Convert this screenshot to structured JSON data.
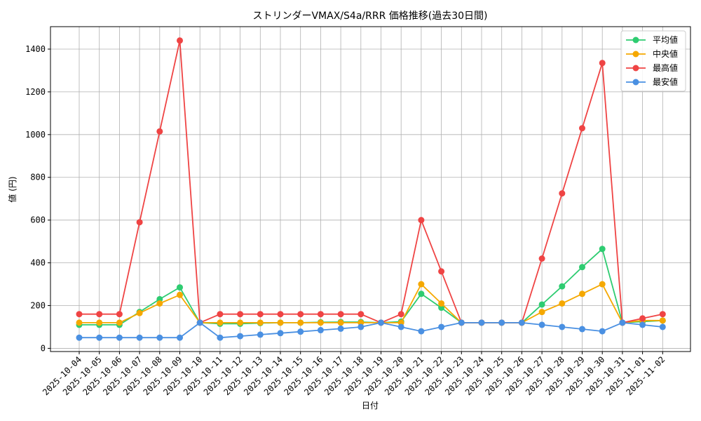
{
  "chart_data": {
    "type": "line",
    "title": "ストリンダーVMAX/S4a/RRR 価格推移(過去30日間)",
    "xlabel": "日付",
    "ylabel": "値 (円)",
    "ylim": [
      -15,
      1505
    ],
    "y_ticks": [
      0,
      200,
      400,
      600,
      800,
      1000,
      1200,
      1400
    ],
    "grid": true,
    "legend_position": "top-right",
    "x": [
      "2025-10-04",
      "2025-10-05",
      "2025-10-06",
      "2025-10-07",
      "2025-10-08",
      "2025-10-09",
      "2025-10-10",
      "2025-10-11",
      "2025-10-12",
      "2025-10-13",
      "2025-10-14",
      "2025-10-15",
      "2025-10-16",
      "2025-10-17",
      "2025-10-18",
      "2025-10-19",
      "2025-10-20",
      "2025-10-21",
      "2025-10-22",
      "2025-10-23",
      "2025-10-24",
      "2025-10-25",
      "2025-10-26",
      "2025-10-27",
      "2025-10-28",
      "2025-10-29",
      "2025-10-30",
      "2025-10-31",
      "2025-11-01",
      "2025-11-02"
    ],
    "series": [
      {
        "name": "平均値",
        "color": "#2ecc71",
        "values": [
          110,
          110,
          110,
          170,
          230,
          285,
          120,
          115,
          115,
          118,
          120,
          120,
          122,
          123,
          123,
          120,
          125,
          255,
          190,
          120,
          120,
          120,
          120,
          205,
          290,
          380,
          465,
          120,
          125,
          130
        ]
      },
      {
        "name": "中央値",
        "color": "#f5a800",
        "values": [
          120,
          120,
          120,
          165,
          210,
          250,
          120,
          120,
          120,
          120,
          120,
          120,
          120,
          120,
          120,
          120,
          120,
          300,
          210,
          120,
          120,
          120,
          120,
          170,
          210,
          255,
          300,
          120,
          130,
          130
        ]
      },
      {
        "name": "最高値",
        "color": "#ef4444",
        "values": [
          160,
          160,
          160,
          590,
          1015,
          1440,
          120,
          160,
          160,
          160,
          160,
          160,
          160,
          160,
          160,
          120,
          160,
          600,
          360,
          120,
          120,
          120,
          120,
          420,
          725,
          1030,
          1335,
          120,
          140,
          160
        ]
      },
      {
        "name": "最安値",
        "color": "#4a90e2",
        "values": [
          50,
          50,
          50,
          50,
          50,
          50,
          120,
          50,
          57,
          64,
          71,
          78,
          85,
          92,
          100,
          120,
          100,
          80,
          100,
          120,
          120,
          120,
          120,
          110,
          100,
          90,
          80,
          120,
          110,
          100
        ]
      }
    ]
  }
}
